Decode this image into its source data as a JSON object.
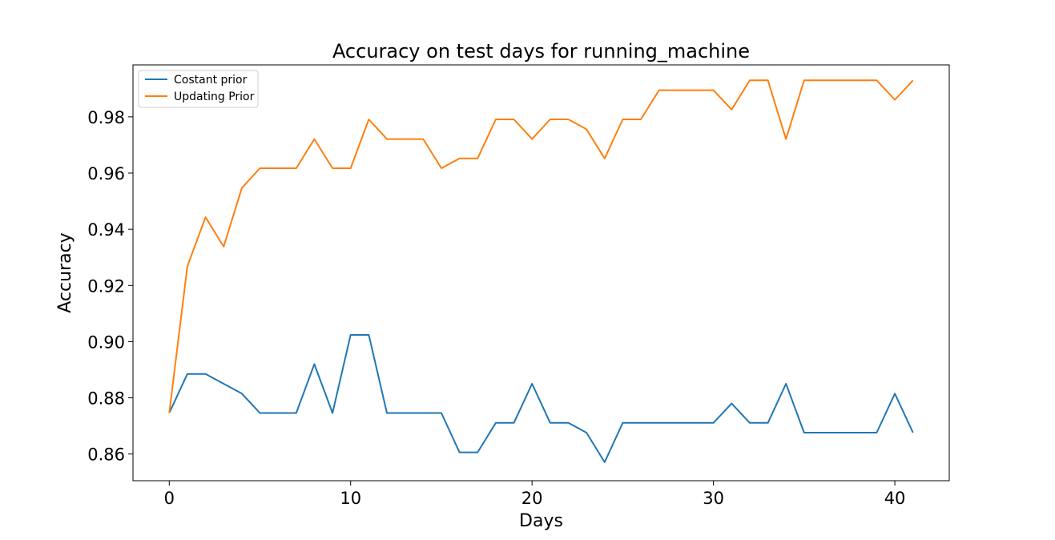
{
  "chart_data": {
    "type": "line",
    "title": "Accuracy on test days for running_machine",
    "xlabel": "Days",
    "ylabel": "Accuracy",
    "xlim": [
      -2,
      43
    ],
    "ylim": [
      0.8505,
      0.9985
    ],
    "xticks": [
      0,
      10,
      20,
      30,
      40
    ],
    "xtick_labels": [
      "0",
      "10",
      "20",
      "30",
      "40"
    ],
    "yticks": [
      0.86,
      0.88,
      0.9,
      0.92,
      0.94,
      0.96,
      0.98
    ],
    "ytick_labels": [
      "0.86",
      "0.88",
      "0.90",
      "0.92",
      "0.94",
      "0.96",
      "0.98"
    ],
    "grid": false,
    "legend_position": "upper-left",
    "x": [
      0,
      1,
      2,
      3,
      4,
      5,
      6,
      7,
      8,
      9,
      10,
      11,
      12,
      13,
      14,
      15,
      16,
      17,
      18,
      19,
      20,
      21,
      22,
      23,
      24,
      25,
      26,
      27,
      28,
      29,
      30,
      31,
      32,
      33,
      34,
      35,
      36,
      37,
      38,
      39,
      40,
      41
    ],
    "series": [
      {
        "name": "Costant prior",
        "color": "#1f77b4",
        "values": [
          0.8746,
          0.8885,
          0.8885,
          0.885,
          0.8815,
          0.8746,
          0.8746,
          0.8746,
          0.892,
          0.8746,
          0.9024,
          0.9024,
          0.8746,
          0.8746,
          0.8746,
          0.8746,
          0.8606,
          0.8606,
          0.8711,
          0.8711,
          0.885,
          0.8711,
          0.8711,
          0.8676,
          0.8571,
          0.8711,
          0.8711,
          0.8711,
          0.8711,
          0.8711,
          0.8711,
          0.878,
          0.8711,
          0.8711,
          0.885,
          0.8676,
          0.8676,
          0.8676,
          0.8676,
          0.8676,
          0.8815,
          0.8676
        ]
      },
      {
        "name": "Updating Prior",
        "color": "#ff7f0e",
        "values": [
          0.8746,
          0.9268,
          0.9443,
          0.9338,
          0.9547,
          0.9617,
          0.9617,
          0.9617,
          0.9721,
          0.9617,
          0.9617,
          0.9791,
          0.9721,
          0.9721,
          0.9721,
          0.9617,
          0.9652,
          0.9652,
          0.9791,
          0.9791,
          0.9721,
          0.9791,
          0.9791,
          0.9756,
          0.9652,
          0.9791,
          0.9791,
          0.9895,
          0.9895,
          0.9895,
          0.9895,
          0.9826,
          0.993,
          0.993,
          0.9721,
          0.993,
          0.993,
          0.993,
          0.993,
          0.993,
          0.9861,
          0.993
        ]
      }
    ]
  }
}
